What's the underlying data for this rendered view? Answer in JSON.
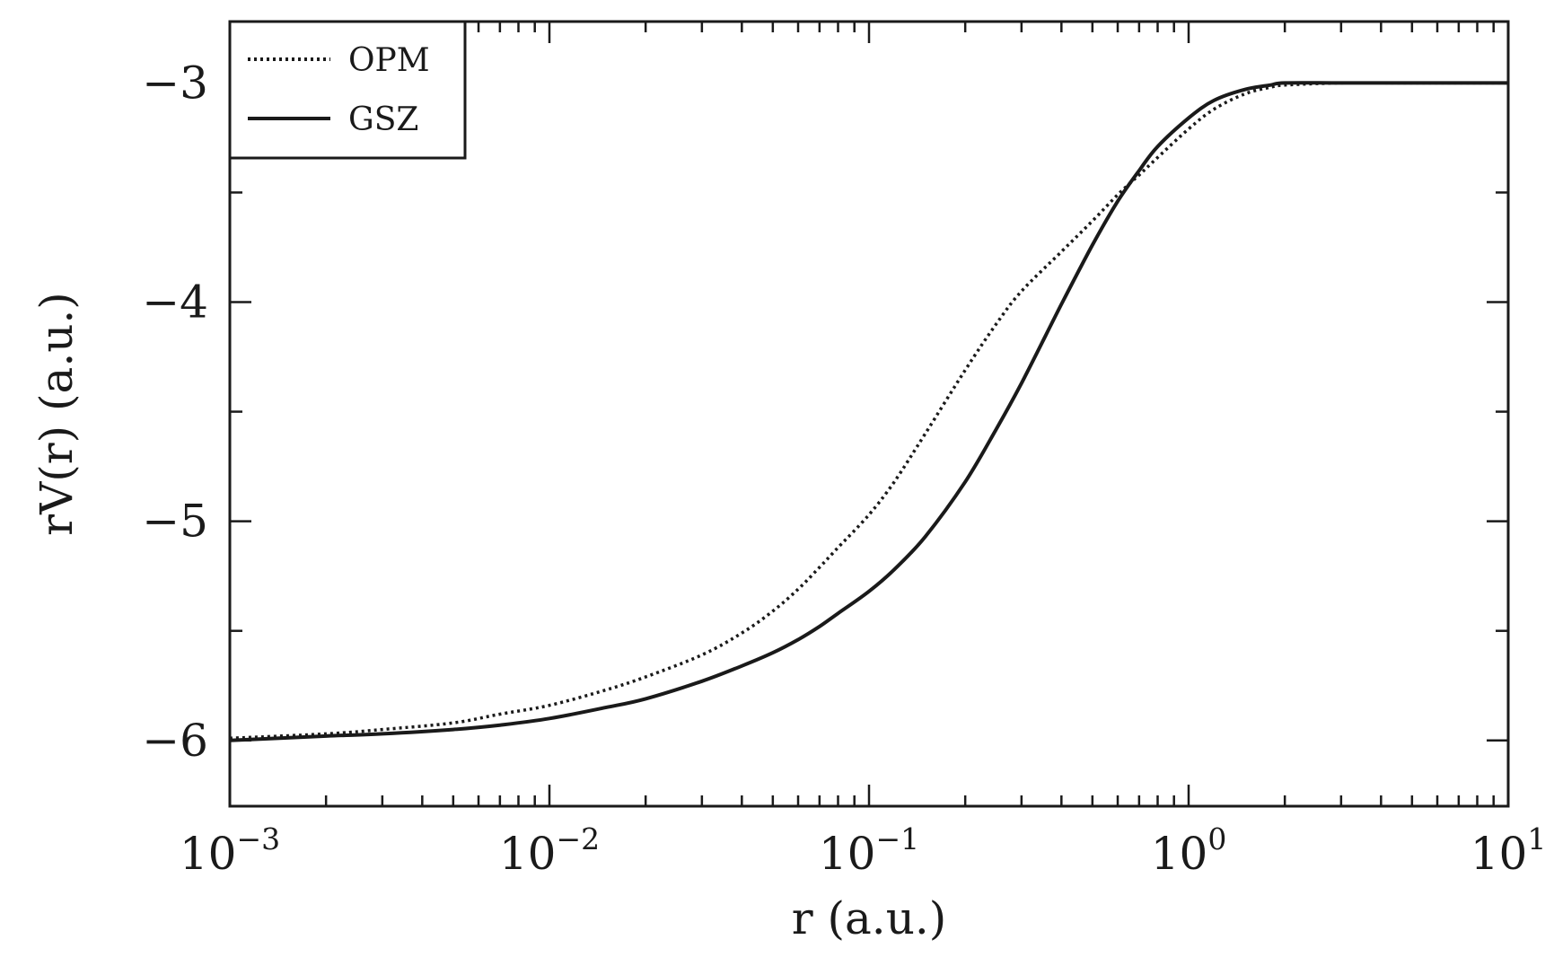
{
  "chart_data": {
    "type": "line",
    "xscale": "log",
    "xlim": [
      0.001,
      10
    ],
    "ylim": [
      -6.3,
      -2.72
    ],
    "xlabel": "r (a.u.)",
    "ylabel": "rV(r) (a.u.)",
    "x_ticks": [
      {
        "base": "10",
        "exp": "−3",
        "value": 0.001
      },
      {
        "base": "10",
        "exp": "−2",
        "value": 0.01
      },
      {
        "base": "10",
        "exp": "−1",
        "value": 0.1
      },
      {
        "base": "10",
        "exp": "0",
        "value": 1
      },
      {
        "base": "10",
        "exp": "1",
        "value": 10
      }
    ],
    "y_ticks": [
      {
        "label": "−3",
        "value": -3
      },
      {
        "label": "−4",
        "value": -4
      },
      {
        "label": "−5",
        "value": -5
      },
      {
        "label": "−6",
        "value": -6
      }
    ],
    "y_minor_ticks": [
      -3.5,
      -4.5,
      -5.5
    ],
    "grid": false,
    "legend_position": "top-left",
    "series": [
      {
        "name": "OPM",
        "style": "dotted",
        "x": [
          0.001,
          0.002,
          0.003,
          0.005,
          0.007,
          0.01,
          0.015,
          0.02,
          0.03,
          0.04,
          0.05,
          0.06,
          0.07,
          0.08,
          0.1,
          0.12,
          0.15,
          0.2,
          0.25,
          0.3,
          0.4,
          0.5,
          0.6,
          0.7,
          0.8,
          1.0,
          1.2,
          1.5,
          1.8,
          2.0,
          3.0,
          5.0,
          10.0
        ],
        "y": [
          -5.99,
          -5.97,
          -5.95,
          -5.92,
          -5.88,
          -5.84,
          -5.77,
          -5.71,
          -5.61,
          -5.51,
          -5.41,
          -5.31,
          -5.21,
          -5.12,
          -4.97,
          -4.82,
          -4.6,
          -4.31,
          -4.1,
          -3.95,
          -3.77,
          -3.63,
          -3.51,
          -3.42,
          -3.34,
          -3.21,
          -3.12,
          -3.05,
          -3.02,
          -3.01,
          -3.0,
          -3.0,
          -3.0
        ]
      },
      {
        "name": "GSZ",
        "style": "solid",
        "x": [
          0.001,
          0.002,
          0.003,
          0.005,
          0.007,
          0.01,
          0.015,
          0.02,
          0.03,
          0.04,
          0.05,
          0.06,
          0.07,
          0.08,
          0.1,
          0.12,
          0.15,
          0.2,
          0.25,
          0.3,
          0.4,
          0.5,
          0.6,
          0.7,
          0.8,
          1.0,
          1.2,
          1.5,
          1.8,
          2.0,
          3.0,
          5.0,
          10.0
        ],
        "y": [
          -6.0,
          -5.98,
          -5.97,
          -5.95,
          -5.93,
          -5.9,
          -5.85,
          -5.81,
          -5.73,
          -5.66,
          -5.6,
          -5.54,
          -5.48,
          -5.42,
          -5.32,
          -5.22,
          -5.07,
          -4.82,
          -4.58,
          -4.37,
          -4.01,
          -3.74,
          -3.54,
          -3.4,
          -3.29,
          -3.16,
          -3.08,
          -3.03,
          -3.01,
          -3.0,
          -3.0,
          -3.0,
          -3.0
        ]
      }
    ]
  }
}
